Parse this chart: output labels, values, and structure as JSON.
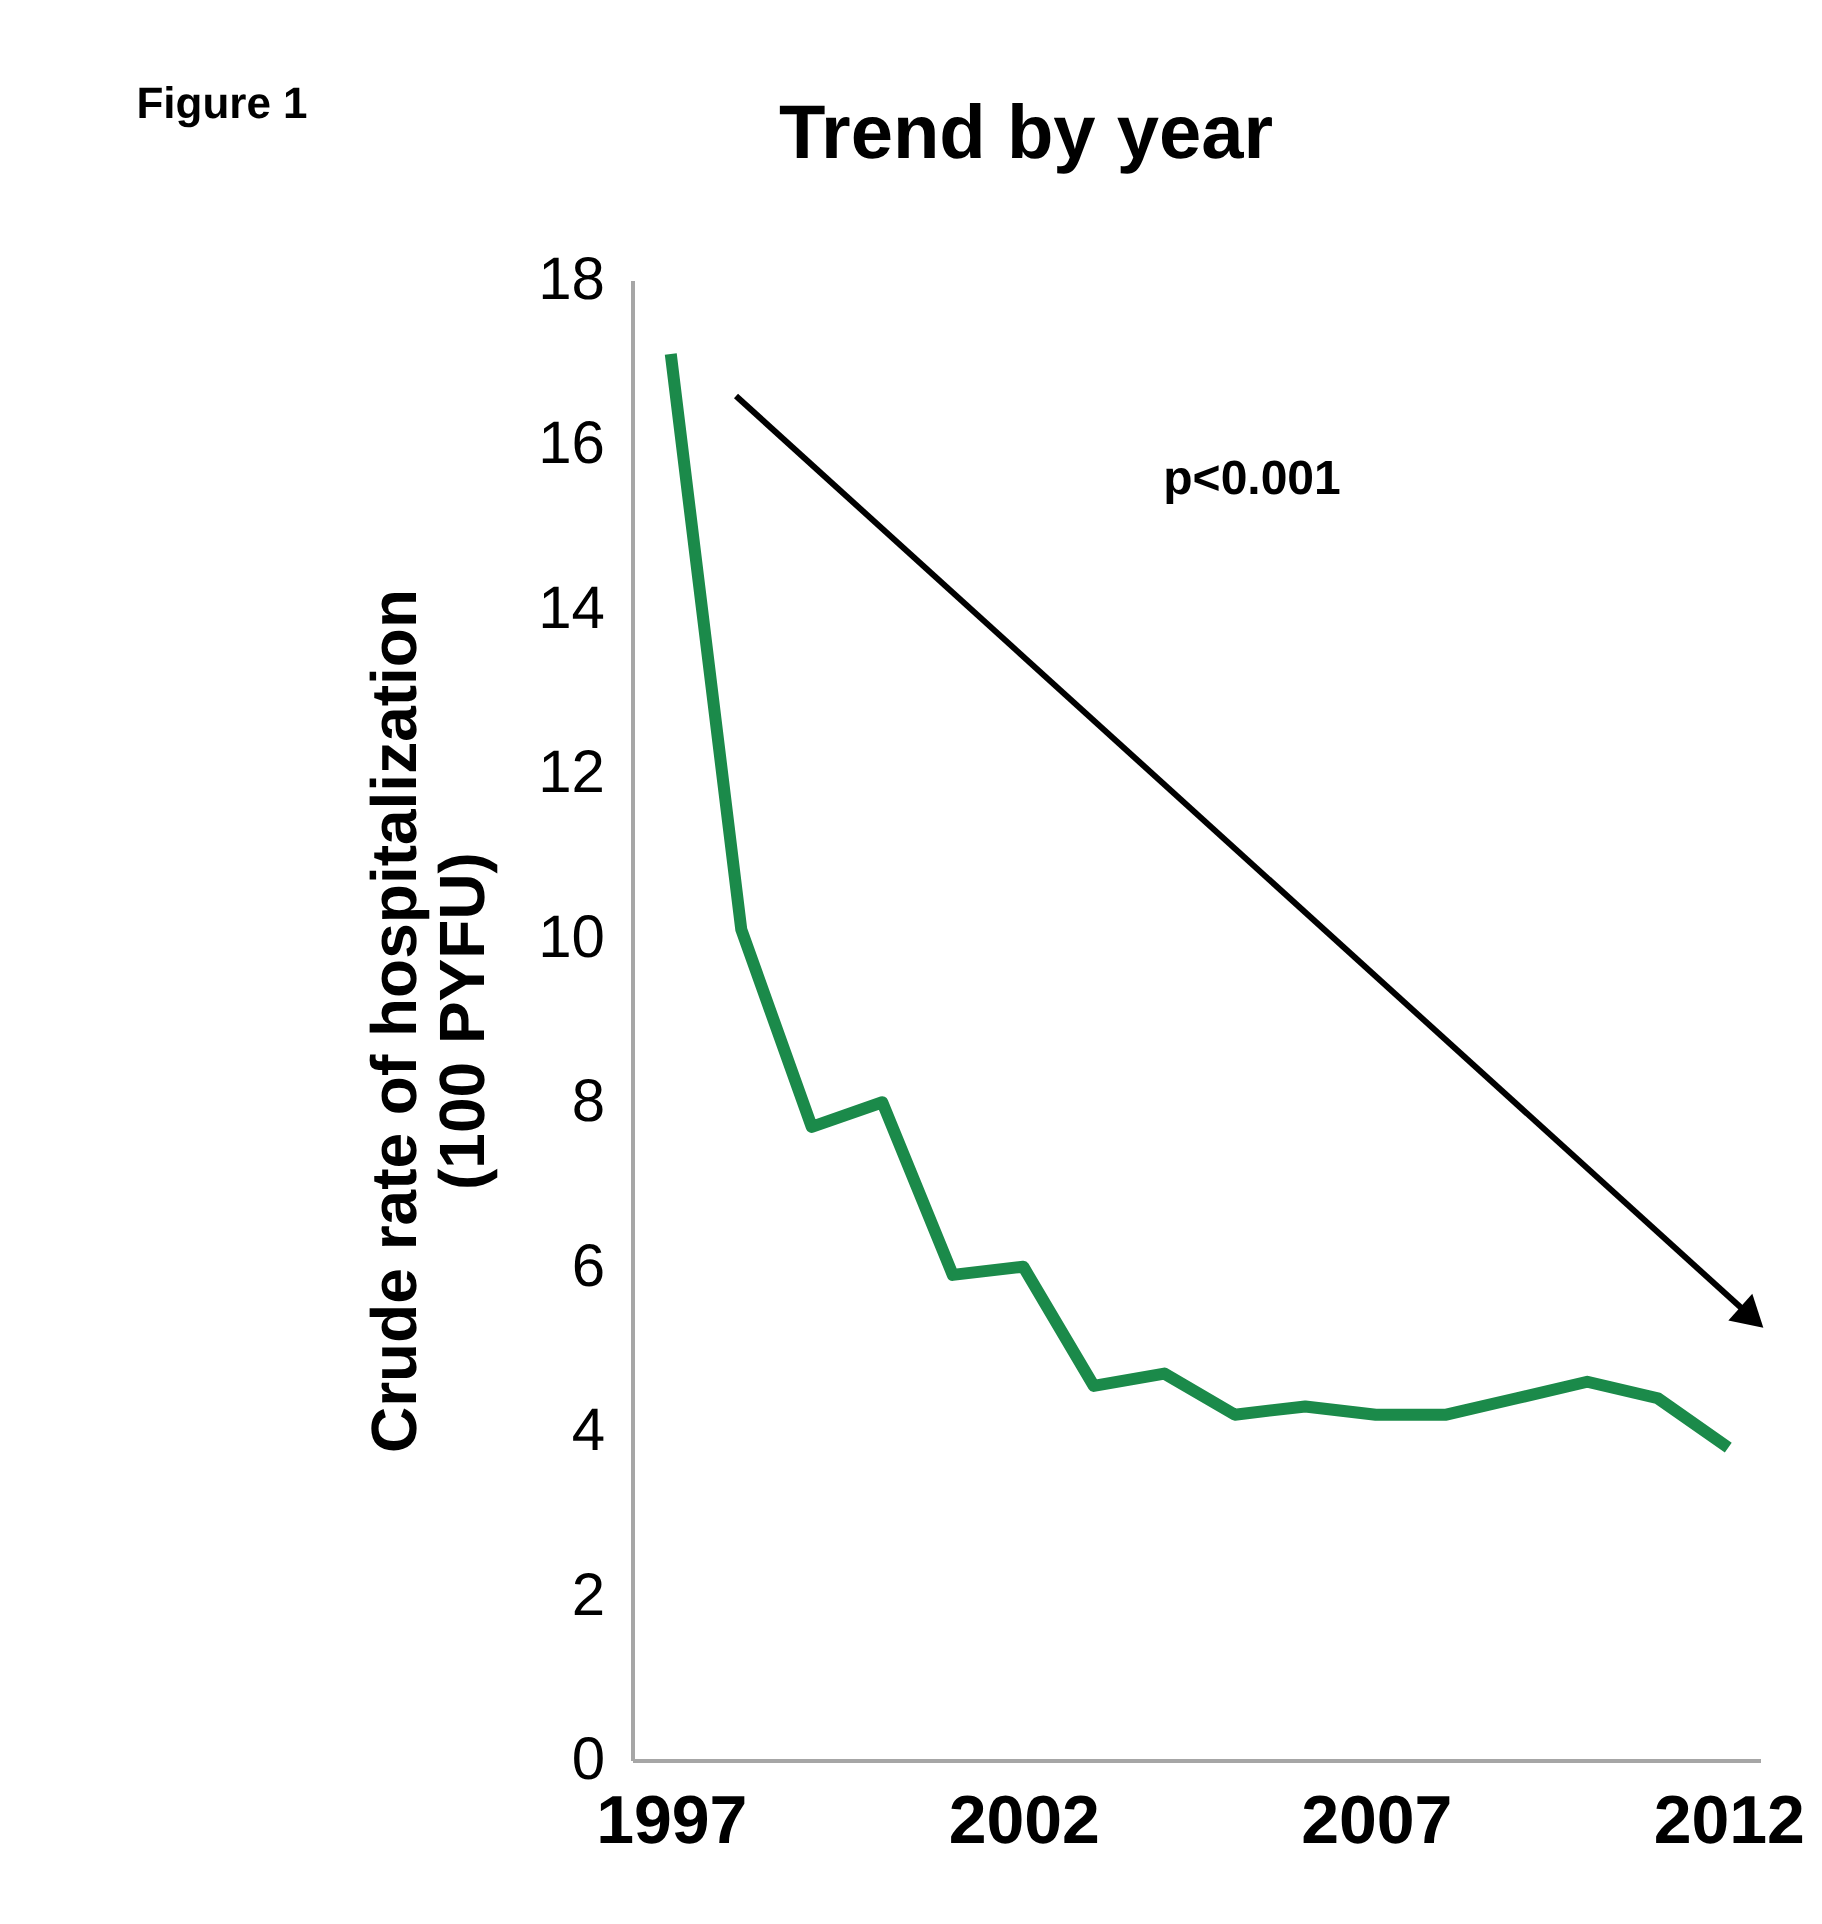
{
  "chart_data": {
    "type": "line",
    "title": "Trend by year",
    "ylabel": "Crude rate of hospitalization\n(100 PYFU)",
    "annotations": [
      "Figure 1",
      "p<0.001"
    ],
    "x": [
      1997,
      1998,
      1999,
      2000,
      2001,
      2002,
      2003,
      2004,
      2005,
      2006,
      2007,
      2008,
      2009,
      2010,
      2011,
      2012
    ],
    "series": [
      {
        "color": "#1b8a4a",
        "values": [
          17.1,
          10.1,
          7.7,
          8.0,
          5.9,
          6.0,
          4.55,
          4.7,
          4.2,
          4.3,
          4.2,
          4.2,
          4.4,
          4.6,
          4.4,
          3.8
        ]
      }
    ],
    "xlim": [
      1996.45,
      2012.45
    ],
    "xticks": [
      1997,
      2002,
      2007,
      2012
    ],
    "ylim": [
      0,
      18
    ],
    "yticks": [
      0,
      2,
      4,
      6,
      8,
      10,
      12,
      14,
      16,
      18
    ],
    "grid": false,
    "legend": false,
    "marker": "none",
    "line_style": "solid"
  }
}
